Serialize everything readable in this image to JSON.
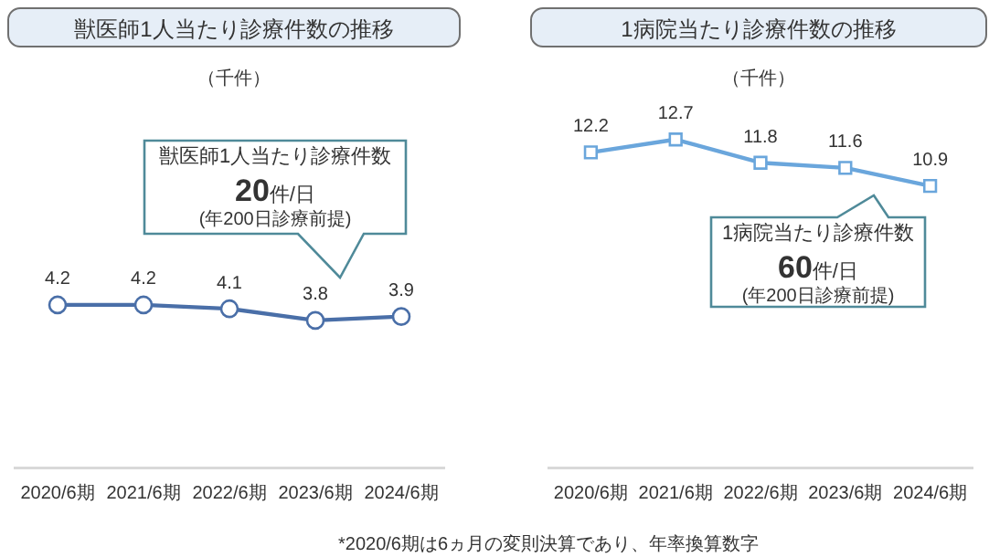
{
  "chart_data": [
    {
      "type": "line",
      "title": "獣医師1人当たり診療件数の推移",
      "subtitle": "（千件）",
      "categories": [
        "2020/6期",
        "2021/6期",
        "2022/6期",
        "2023/6期",
        "2024/6期"
      ],
      "series": [
        {
          "color": "#4a6fa8",
          "values": [
            4.2,
            4.2,
            4.1,
            3.8,
            3.9
          ]
        }
      ],
      "tick_labels": "x",
      "grid": false,
      "legend": false,
      "marker": "circle",
      "data_labels": true,
      "annotations": [
        "獣医師1人当たり診療件数\n20件/日\n(年200日診療前提)"
      ]
    },
    {
      "type": "line",
      "title": "1病院当たり診療件数の推移",
      "subtitle": "（千件）",
      "categories": [
        "2020/6期",
        "2021/6期",
        "2022/6期",
        "2023/6期",
        "2024/6期"
      ],
      "series": [
        {
          "color": "#6aa6dc",
          "values": [
            12.2,
            12.7,
            11.8,
            11.6,
            10.9
          ]
        }
      ],
      "tick_labels": "x",
      "grid": false,
      "legend": false,
      "marker": "square",
      "data_labels": true,
      "annotations": [
        "1病院当たり診療件数\n60件/日\n(年200日診療前提)",
        "*2020/6期は6ヵ月の変則決算であり、年率換算数字"
      ]
    }
  ]
}
